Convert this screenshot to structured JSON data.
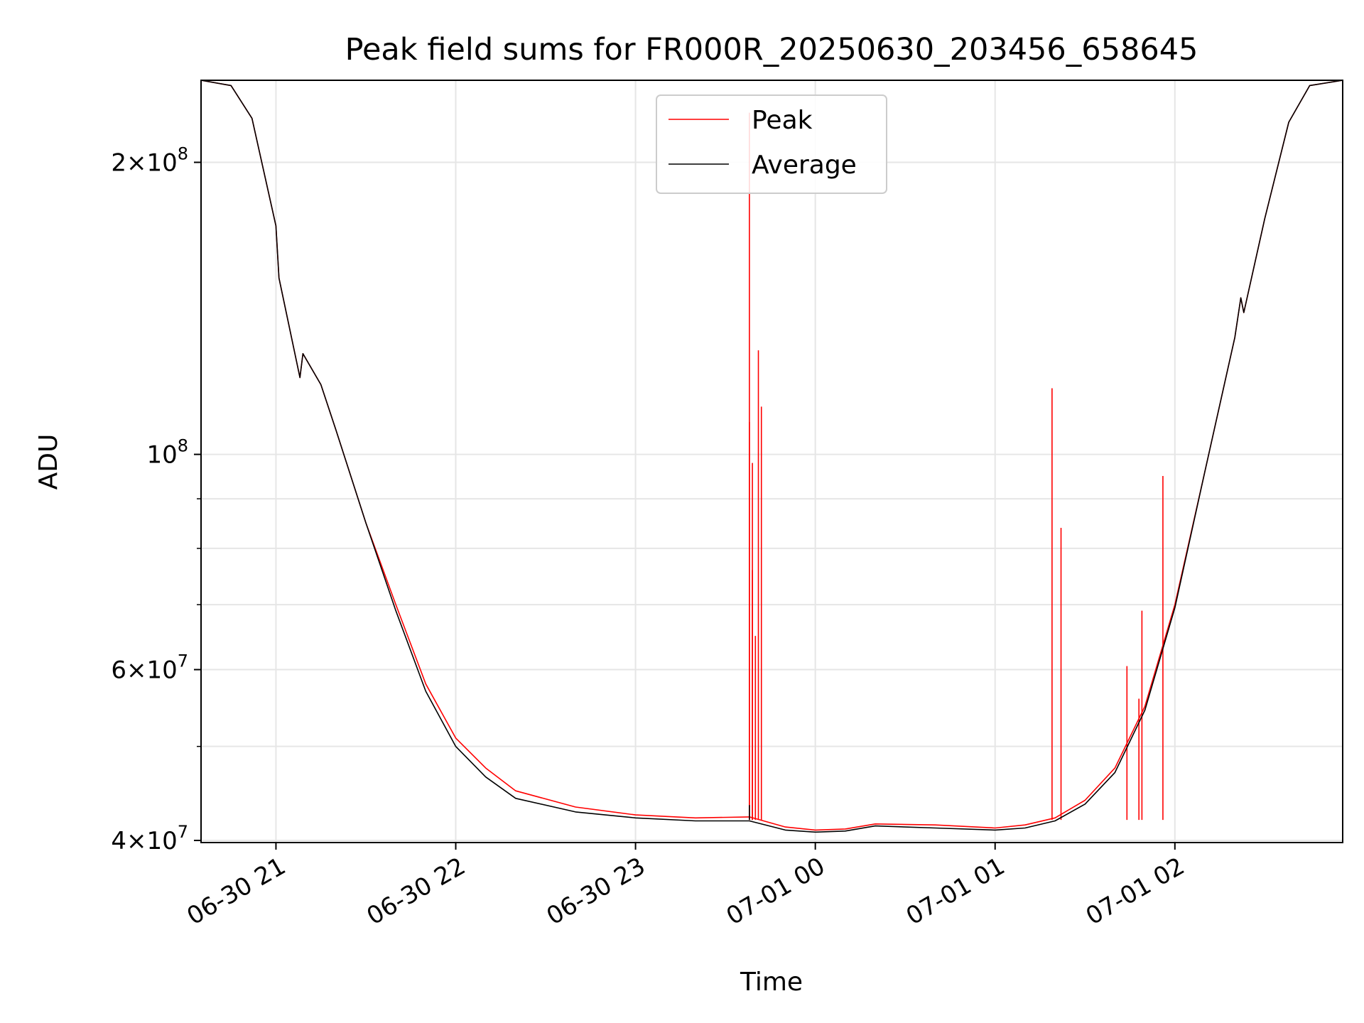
{
  "chart_data": {
    "type": "line",
    "title": "Peak field sums for FR000R_20250630_203456_658645",
    "xlabel": "Time",
    "ylabel": "ADU",
    "yscale": "log",
    "xlim": [
      "2025-06-30 20:35",
      "2025-07-01 02:56"
    ],
    "ylim": [
      39800000,
      243000000
    ],
    "grid": true,
    "legend_position": "upper center",
    "x_ticks": [
      {
        "t": "2025-06-30 21:00",
        "label": "06-30 21"
      },
      {
        "t": "2025-06-30 22:00",
        "label": "06-30 22"
      },
      {
        "t": "2025-06-30 23:00",
        "label": "06-30 23"
      },
      {
        "t": "2025-07-01 00:00",
        "label": "07-01 00"
      },
      {
        "t": "2025-07-01 01:00",
        "label": "07-01 01"
      },
      {
        "t": "2025-07-01 02:00",
        "label": "07-01 02"
      }
    ],
    "y_major_ticks": [
      {
        "v": 40000000,
        "mant": "4",
        "exp": "7"
      },
      {
        "v": 60000000,
        "mant": "6",
        "exp": "7"
      },
      {
        "v": 100000000,
        "mant": "",
        "exp": "8"
      },
      {
        "v": 200000000,
        "mant": "2",
        "exp": "8"
      }
    ],
    "y_minor_ticks": [
      50000000,
      70000000,
      80000000,
      90000000
    ],
    "colors": {
      "peak": "#ff0000",
      "average": "#000000",
      "grid": "#e6e6e6"
    },
    "series": [
      {
        "name": "Peak",
        "color": "#ff0000",
        "points": [
          [
            "2025-06-30 20:35",
            243000000
          ],
          [
            "2025-06-30 20:45",
            240000000
          ],
          [
            "2025-06-30 20:52",
            222000000
          ],
          [
            "2025-06-30 21:00",
            172000000
          ],
          [
            "2025-06-30 21:01",
            152000000
          ],
          [
            "2025-06-30 21:08",
            120000000
          ],
          [
            "2025-06-30 21:09",
            127000000
          ],
          [
            "2025-06-30 21:15",
            118000000
          ],
          [
            "2025-06-30 21:20",
            106000000
          ],
          [
            "2025-06-30 21:30",
            85000000
          ],
          [
            "2025-06-30 21:40",
            70000000
          ],
          [
            "2025-06-30 21:50",
            58000000
          ],
          [
            "2025-06-30 22:00",
            51000000
          ],
          [
            "2025-06-30 22:10",
            47500000
          ],
          [
            "2025-06-30 22:20",
            45000000
          ],
          [
            "2025-06-30 22:40",
            43300000
          ],
          [
            "2025-06-30 23:00",
            42500000
          ],
          [
            "2025-06-30 23:20",
            42200000
          ],
          [
            "2025-06-30 23:38",
            42300000
          ],
          [
            "2025-06-30 23:50",
            41300000
          ],
          [
            "2025-07-01 00:00",
            41000000
          ],
          [
            "2025-07-01 00:10",
            41100000
          ],
          [
            "2025-07-01 00:20",
            41600000
          ],
          [
            "2025-07-01 00:40",
            41500000
          ],
          [
            "2025-07-01 01:00",
            41200000
          ],
          [
            "2025-07-01 01:10",
            41500000
          ],
          [
            "2025-07-01 01:20",
            42200000
          ],
          [
            "2025-07-01 01:30",
            44000000
          ],
          [
            "2025-07-01 01:40",
            47500000
          ],
          [
            "2025-07-01 01:50",
            55000000
          ],
          [
            "2025-07-01 02:00",
            70000000
          ],
          [
            "2025-07-01 02:10",
            96000000
          ],
          [
            "2025-07-01 02:20",
            132000000
          ],
          [
            "2025-07-01 02:22",
            145000000
          ],
          [
            "2025-07-01 02:23",
            140000000
          ],
          [
            "2025-07-01 02:30",
            175000000
          ],
          [
            "2025-07-01 02:38",
            220000000
          ],
          [
            "2025-07-01 02:45",
            240000000
          ],
          [
            "2025-07-01 02:56",
            243000000
          ]
        ],
        "spikes": [
          [
            "2025-06-30 23:38",
            225000000
          ],
          [
            "2025-06-30 23:38",
            108000000
          ],
          [
            "2025-06-30 23:39",
            98000000
          ],
          [
            "2025-06-30 23:39",
            76000000
          ],
          [
            "2025-06-30 23:40",
            65000000
          ],
          [
            "2025-06-30 23:41",
            128000000
          ],
          [
            "2025-06-30 23:42",
            112000000
          ],
          [
            "2025-07-01 01:19",
            117000000
          ],
          [
            "2025-07-01 01:22",
            84000000
          ],
          [
            "2025-07-01 01:44",
            60500000
          ],
          [
            "2025-07-01 01:48",
            56000000
          ],
          [
            "2025-07-01 01:49",
            69000000
          ],
          [
            "2025-07-01 01:56",
            95000000
          ]
        ]
      },
      {
        "name": "Average",
        "color": "#000000",
        "points": [
          [
            "2025-06-30 20:35",
            243000000
          ],
          [
            "2025-06-30 20:45",
            240000000
          ],
          [
            "2025-06-30 20:52",
            222000000
          ],
          [
            "2025-06-30 21:00",
            172000000
          ],
          [
            "2025-06-30 21:01",
            152000000
          ],
          [
            "2025-06-30 21:08",
            120000000
          ],
          [
            "2025-06-30 21:09",
            127000000
          ],
          [
            "2025-06-30 21:15",
            118000000
          ],
          [
            "2025-06-30 21:20",
            106000000
          ],
          [
            "2025-06-30 21:30",
            85000000
          ],
          [
            "2025-06-30 21:40",
            69000000
          ],
          [
            "2025-06-30 21:50",
            57000000
          ],
          [
            "2025-06-30 22:00",
            50000000
          ],
          [
            "2025-06-30 22:10",
            46500000
          ],
          [
            "2025-06-30 22:20",
            44200000
          ],
          [
            "2025-06-30 22:40",
            42800000
          ],
          [
            "2025-06-30 23:00",
            42200000
          ],
          [
            "2025-06-30 23:20",
            41900000
          ],
          [
            "2025-06-30 23:38",
            41900000
          ],
          [
            "2025-06-30 23:50",
            41000000
          ],
          [
            "2025-07-01 00:00",
            40800000
          ],
          [
            "2025-07-01 00:10",
            40900000
          ],
          [
            "2025-07-01 00:20",
            41400000
          ],
          [
            "2025-07-01 00:40",
            41200000
          ],
          [
            "2025-07-01 01:00",
            41000000
          ],
          [
            "2025-07-01 01:10",
            41200000
          ],
          [
            "2025-07-01 01:20",
            41900000
          ],
          [
            "2025-07-01 01:30",
            43600000
          ],
          [
            "2025-07-01 01:40",
            47000000
          ],
          [
            "2025-07-01 01:50",
            54500000
          ],
          [
            "2025-07-01 02:00",
            69500000
          ],
          [
            "2025-07-01 02:10",
            96000000
          ],
          [
            "2025-07-01 02:20",
            132000000
          ],
          [
            "2025-07-01 02:22",
            145000000
          ],
          [
            "2025-07-01 02:23",
            140000000
          ],
          [
            "2025-07-01 02:30",
            175000000
          ],
          [
            "2025-07-01 02:38",
            220000000
          ],
          [
            "2025-07-01 02:45",
            240000000
          ],
          [
            "2025-07-01 02:56",
            243000000
          ]
        ],
        "spikes": [
          [
            "2025-06-30 23:38",
            43500000
          ]
        ]
      }
    ]
  }
}
